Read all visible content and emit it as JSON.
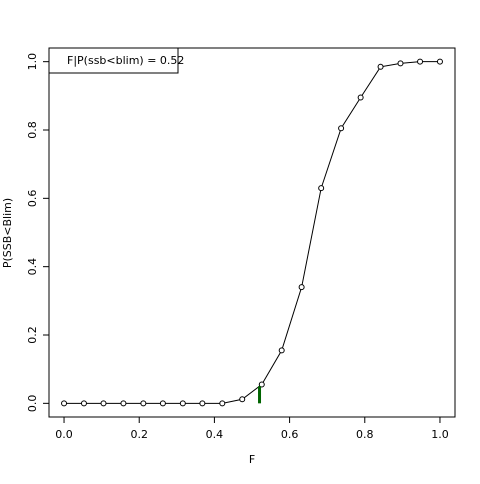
{
  "chart_data": {
    "type": "line",
    "xlabel": "F",
    "ylabel": "P(SSB<Blim)",
    "legend_text": "F|P(ssb<blim) =  0.52",
    "x": [
      0,
      0.053,
      0.105,
      0.158,
      0.211,
      0.263,
      0.316,
      0.368,
      0.421,
      0.474,
      0.526,
      0.579,
      0.632,
      0.684,
      0.737,
      0.789,
      0.842,
      0.895,
      0.947,
      1.0
    ],
    "series": [
      {
        "color": "#000000",
        "values": [
          0,
          0,
          0,
          0,
          0,
          0,
          0,
          0,
          0,
          0.012,
          0.055,
          0.155,
          0.34,
          0.63,
          0.805,
          0.895,
          0.985,
          0.995,
          1.0,
          1.0
        ]
      }
    ],
    "marker": {
      "x": 0.52,
      "y": 0.05,
      "color": "#006400"
    },
    "xlim": [
      -0.04,
      1.04
    ],
    "ylim": [
      -0.04,
      1.04
    ],
    "xticks": [
      {
        "value": 0,
        "label": "0.0"
      },
      {
        "value": 0.2,
        "label": "0.2"
      },
      {
        "value": 0.4,
        "label": "0.4"
      },
      {
        "value": 0.6,
        "label": "0.6"
      },
      {
        "value": 0.8,
        "label": "0.8"
      },
      {
        "value": 1,
        "label": "1.0"
      }
    ],
    "yticks": [
      {
        "value": 0,
        "label": "0.0"
      },
      {
        "value": 0.2,
        "label": "0.2"
      },
      {
        "value": 0.4,
        "label": "0.4"
      },
      {
        "value": 0.6,
        "label": "0.6"
      },
      {
        "value": 0.8,
        "label": "0.8"
      },
      {
        "value": 1,
        "label": "1.0"
      }
    ]
  }
}
